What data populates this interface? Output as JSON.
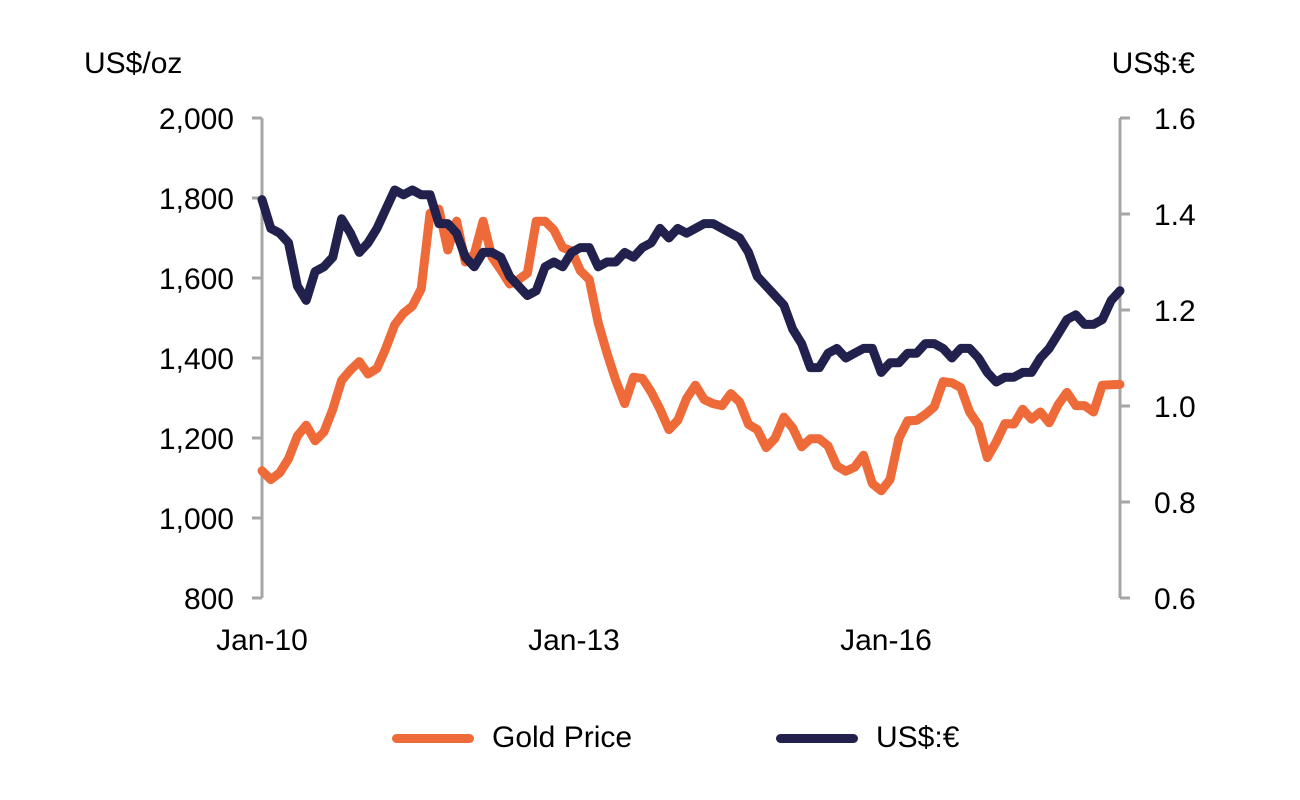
{
  "chart_data": {
    "type": "line",
    "title": "",
    "left_axis": {
      "label": "US$/oz",
      "min": 800,
      "max": 2000,
      "ticks": [
        800,
        1000,
        1200,
        1400,
        1600,
        1800,
        2000
      ],
      "tick_labels": [
        "800",
        "1,000",
        "1,200",
        "1,400",
        "1,600",
        "1,800",
        "2,000"
      ]
    },
    "right_axis": {
      "label": "US$:€",
      "min": 0.6,
      "max": 1.6,
      "ticks": [
        0.6,
        0.8,
        1.0,
        1.2,
        1.4,
        1.6
      ],
      "tick_labels": [
        "0.6",
        "0.8",
        "1.0",
        "1.2",
        "1.4",
        "1.6"
      ]
    },
    "x_axis": {
      "start": "Jan-10",
      "end": "Apr-18",
      "tick_labels": [
        "Jan-10",
        "Jan-13",
        "Jan-16"
      ],
      "tick_months": [
        0,
        36,
        72
      ]
    },
    "grid": false,
    "legend_position": "bottom",
    "series": [
      {
        "name": "Gold Price",
        "axis": "left",
        "color": "#ee6a38",
        "values": [
          1118,
          1096,
          1113,
          1148,
          1205,
          1232,
          1193,
          1215,
          1272,
          1344,
          1370,
          1391,
          1360,
          1374,
          1424,
          1483,
          1512,
          1530,
          1573,
          1762,
          1772,
          1670,
          1742,
          1640,
          1660,
          1742,
          1652,
          1620,
          1585,
          1596,
          1612,
          1742,
          1742,
          1720,
          1676,
          1668,
          1618,
          1596,
          1489,
          1412,
          1344,
          1286,
          1352,
          1349,
          1315,
          1272,
          1221,
          1244,
          1299,
          1332,
          1296,
          1286,
          1281,
          1311,
          1290,
          1234,
          1221,
          1176,
          1199,
          1252,
          1225,
          1178,
          1198,
          1198,
          1180,
          1130,
          1117,
          1127,
          1157,
          1086,
          1068,
          1096,
          1199,
          1243,
          1244,
          1259,
          1278,
          1341,
          1338,
          1326,
          1265,
          1232,
          1151,
          1190,
          1236,
          1235,
          1272,
          1247,
          1265,
          1238,
          1283,
          1314,
          1281,
          1281,
          1265,
          1332,
          1333,
          1334
        ]
      },
      {
        "name": "US$:€",
        "axis": "right",
        "color": "#22214d",
        "values": [
          1.43,
          1.37,
          1.36,
          1.34,
          1.25,
          1.22,
          1.28,
          1.29,
          1.31,
          1.39,
          1.36,
          1.32,
          1.34,
          1.37,
          1.41,
          1.45,
          1.44,
          1.45,
          1.44,
          1.44,
          1.38,
          1.38,
          1.36,
          1.31,
          1.29,
          1.32,
          1.32,
          1.31,
          1.27,
          1.25,
          1.23,
          1.24,
          1.29,
          1.3,
          1.29,
          1.32,
          1.33,
          1.33,
          1.29,
          1.3,
          1.3,
          1.32,
          1.31,
          1.33,
          1.34,
          1.37,
          1.35,
          1.37,
          1.36,
          1.37,
          1.38,
          1.38,
          1.37,
          1.36,
          1.35,
          1.32,
          1.27,
          1.25,
          1.23,
          1.21,
          1.16,
          1.13,
          1.08,
          1.08,
          1.11,
          1.12,
          1.1,
          1.11,
          1.12,
          1.12,
          1.07,
          1.09,
          1.09,
          1.11,
          1.11,
          1.13,
          1.13,
          1.12,
          1.1,
          1.12,
          1.12,
          1.1,
          1.07,
          1.05,
          1.06,
          1.06,
          1.07,
          1.07,
          1.1,
          1.12,
          1.15,
          1.18,
          1.19,
          1.17,
          1.17,
          1.18,
          1.22,
          1.24
        ]
      }
    ]
  }
}
